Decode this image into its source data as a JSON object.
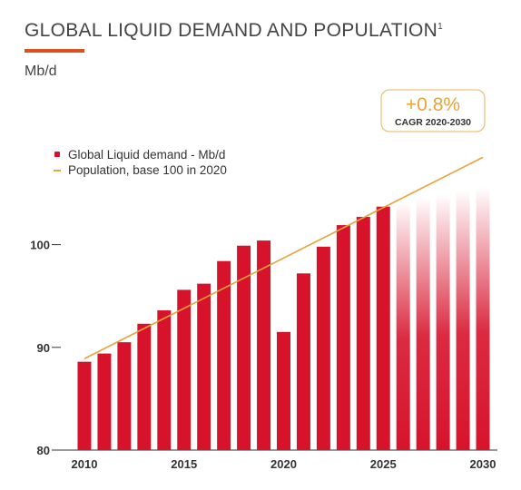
{
  "header": {
    "title": "GLOBAL LIQUID DEMAND AND POPULATION",
    "title_footnote": "1",
    "unit_label": "Mb/d"
  },
  "callout": {
    "value": "+0.8%",
    "label": "CAGR 2020-2030"
  },
  "colors": {
    "bar": "#d7132c",
    "line": "#e8a33b",
    "accent_rule": "#d9531e",
    "callout_text": "#e8a33b",
    "callout_border": "#ebc37d"
  },
  "chart_data": {
    "type": "bar",
    "title": "GLOBAL LIQUID DEMAND AND POPULATION",
    "ylabel": "Mb/d",
    "ylim": [
      80,
      105
    ],
    "yticks": [
      80,
      90,
      100
    ],
    "xticks": [
      2010,
      2015,
      2020,
      2025,
      2030
    ],
    "grid": false,
    "legend_position": "top-left",
    "categories": [
      2010,
      2011,
      2012,
      2013,
      2014,
      2015,
      2016,
      2017,
      2018,
      2019,
      2020,
      2021,
      2022,
      2023,
      2024,
      2025,
      2026,
      2027,
      2028,
      2029,
      2030
    ],
    "series": [
      {
        "name": "Global Liquid demand - Mb/d",
        "type": "bar",
        "values": [
          88.6,
          89.4,
          90.5,
          92.3,
          93.6,
          95.6,
          96.2,
          98.4,
          99.9,
          100.4,
          91.5,
          97.2,
          99.8,
          101.9,
          102.7,
          103.7,
          104.2,
          104.6,
          104.9,
          105.3,
          105.6
        ],
        "projected_from": 2026
      },
      {
        "name": "Population, base 100 in 2020",
        "type": "line",
        "x": [
          2010,
          2030
        ],
        "values": [
          88.9,
          108.5
        ]
      }
    ]
  }
}
